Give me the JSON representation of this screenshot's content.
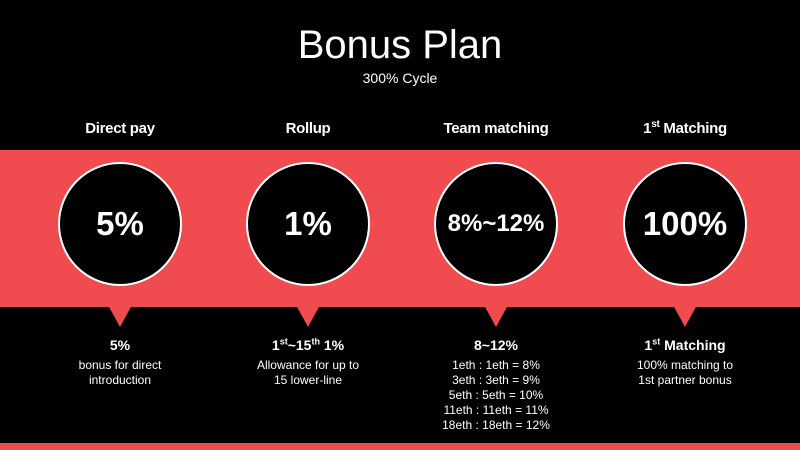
{
  "title": "Bonus Plan",
  "subtitle": "300% Cycle",
  "colors": {
    "band": "#f04b4e",
    "background": "#000000"
  },
  "columns": [
    {
      "title": "Direct pay",
      "circle_value": "5%",
      "detail_head": "5%",
      "detail_lines": [
        "bonus for direct",
        "introduction"
      ]
    },
    {
      "title": "Rollup",
      "circle_value": "1%",
      "detail_head_parts": {
        "a": "1",
        "a_sup": "st",
        "b": "~15",
        "b_sup": "th",
        "c": " 1%"
      },
      "detail_lines": [
        "Allowance for up to",
        "15 lower-line"
      ]
    },
    {
      "title": "Team matching",
      "circle_value": "8%~12%",
      "detail_head": "8~12%",
      "detail_lines": [
        "1eth : 1eth = 8%",
        "3eth : 3eth = 9%",
        "5eth : 5eth = 10%",
        "11eth : 11eth = 11%",
        "18eth : 18eth = 12%"
      ]
    },
    {
      "title_parts": {
        "a": "1",
        "a_sup": "st",
        "b": " Matching"
      },
      "circle_value": "100%",
      "detail_head_parts": {
        "a": "1",
        "a_sup": "st",
        "b": " Matching"
      },
      "detail_lines": [
        "100% matching to",
        "1st partner bonus"
      ]
    }
  ]
}
